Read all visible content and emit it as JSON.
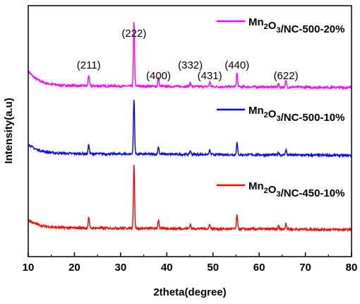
{
  "chart_data": {
    "type": "line",
    "xlabel": "2theta(degree)",
    "ylabel": "Intensity(a.u)",
    "xlim": [
      10,
      80
    ],
    "x_ticks": [
      "10",
      "20",
      "30",
      "40",
      "50",
      "60",
      "70",
      "80"
    ],
    "y_ticks_labeled": false,
    "grid": false,
    "legend_placement": "inline, right of each curve",
    "peak_labels": [
      {
        "text": "(211)",
        "x": 23.1
      },
      {
        "text": "(222)",
        "x": 32.9
      },
      {
        "text": "(400)",
        "x": 38.2
      },
      {
        "text": "(332)",
        "x": 45.1
      },
      {
        "text": "(431)",
        "x": 49.3
      },
      {
        "text": "(440)",
        "x": 55.2
      },
      {
        "text": "(622)",
        "x": 65.8
      }
    ],
    "peaks": [
      {
        "x": 23.1,
        "rel": 0.17
      },
      {
        "x": 32.9,
        "rel": 1.0
      },
      {
        "x": 38.2,
        "rel": 0.14
      },
      {
        "x": 45.1,
        "rel": 0.07
      },
      {
        "x": 49.3,
        "rel": 0.08
      },
      {
        "x": 55.2,
        "rel": 0.22
      },
      {
        "x": 64.2,
        "rel": 0.05
      },
      {
        "x": 65.8,
        "rel": 0.1
      }
    ],
    "series": [
      {
        "name_main": "Mn",
        "name_sub": "2",
        "name_mid": "O",
        "name_sub2": "3",
        "name_rest": "/NC-500-20%",
        "color": "#ff00ff",
        "offset": 2.0,
        "peak_scale": 0.95,
        "bg_rise": 0.22
      },
      {
        "name_main": "Mn",
        "name_sub": "2",
        "name_mid": "O",
        "name_sub2": "3",
        "name_rest": "/NC-500-10%",
        "color": "#0000ff",
        "offset": 1.0,
        "peak_scale": 0.82,
        "bg_rise": 0.14
      },
      {
        "name_main": "Mn",
        "name_sub": "2",
        "name_mid": "O",
        "name_sub2": "3",
        "name_rest": "/NC-450-10%",
        "color": "#ff0000",
        "offset": 0.0,
        "peak_scale": 0.95,
        "bg_rise": 0.12
      }
    ]
  }
}
